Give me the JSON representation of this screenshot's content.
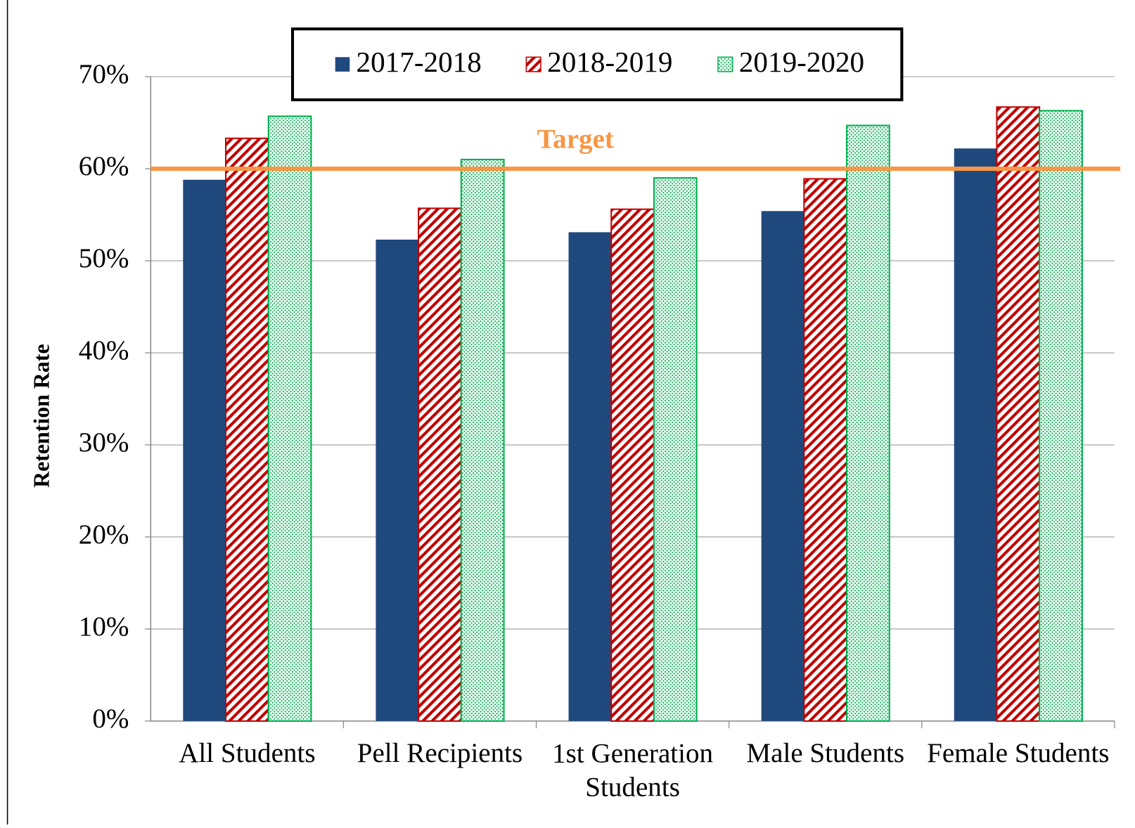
{
  "chart_data": {
    "type": "bar",
    "y_label": "Retention Rate",
    "categories": [
      "All Students",
      "Pell Recipients",
      "1st Generation Students",
      "Male Students",
      "Female Students"
    ],
    "series": [
      {
        "name": "2017-2018",
        "color": "#1f497d",
        "values": [
          58.8,
          52.3,
          53.1,
          55.4,
          62.2
        ]
      },
      {
        "name": "2018-2019",
        "color": "#c00000",
        "values": [
          63.3,
          55.7,
          55.6,
          58.9,
          66.7
        ]
      },
      {
        "name": "2019-2020",
        "color": "#00b050",
        "values": [
          65.7,
          61.0,
          59.0,
          64.7,
          66.3
        ]
      }
    ],
    "ylim": [
      0,
      70
    ],
    "yticks": [
      {
        "value": 0,
        "label": "0%"
      },
      {
        "value": 10,
        "label": "10%"
      },
      {
        "value": 20,
        "label": "20%"
      },
      {
        "value": 30,
        "label": "30%"
      },
      {
        "value": 40,
        "label": "40%"
      },
      {
        "value": 50,
        "label": "50%"
      },
      {
        "value": 60,
        "label": "60%"
      },
      {
        "value": 70,
        "label": "70%"
      }
    ],
    "grid": true,
    "legend": "top",
    "target": {
      "label": "Target",
      "value": 60,
      "color": "#f79646"
    }
  }
}
